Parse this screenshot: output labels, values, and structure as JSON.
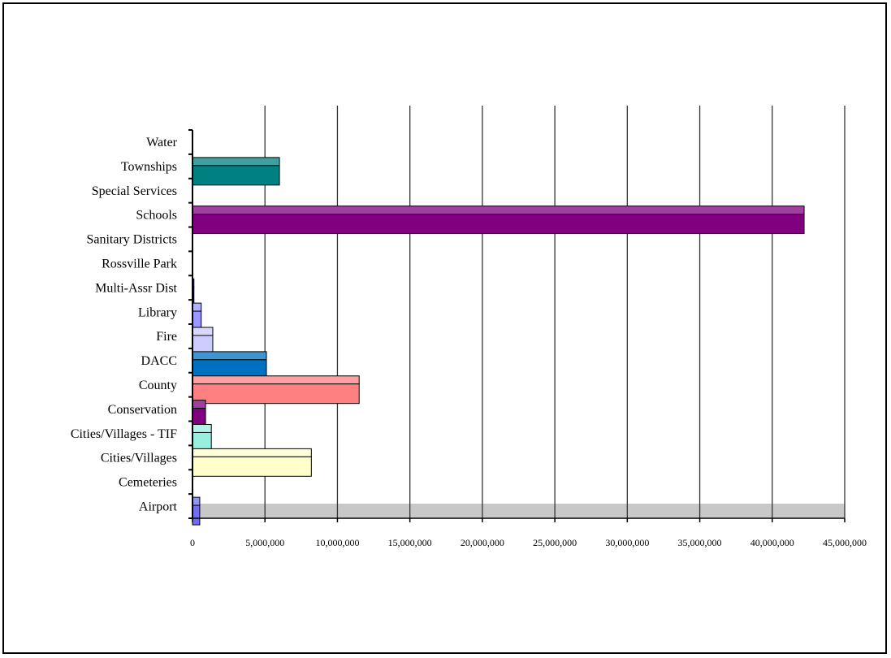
{
  "chart_data": {
    "type": "bar",
    "orientation": "horizontal",
    "style": "3d",
    "categories": [
      "Water",
      "Townships",
      "Special Services",
      "Schools",
      "Sanitary Districts",
      "Rossville Park",
      "Multi-Assr Dist",
      "Library",
      "Fire",
      "DACC",
      "County",
      "Conservation",
      "Cities/Villages  - TIF",
      "Cities/Villages",
      "Cemeteries",
      "Airport"
    ],
    "values": [
      0,
      6000000,
      0,
      42200000,
      0,
      0,
      100000,
      600000,
      1400000,
      5100000,
      11500000,
      900000,
      1300000,
      8200000,
      0,
      500000
    ],
    "colors": [
      "#008080",
      "#008080",
      "#800080",
      "#800080",
      "#cccccc",
      "#800080",
      "#000080",
      "#9999ff",
      "#ccccff",
      "#0070c0",
      "#ff8080",
      "#800080",
      "#99eedd",
      "#ffffcc",
      "#000080",
      "#7070ee"
    ],
    "xlim": [
      0,
      45000000
    ],
    "xticks": [
      "0",
      "5,000,000",
      "10,000,000",
      "15,000,000",
      "20,000,000",
      "25,000,000",
      "30,000,000",
      "35,000,000",
      "40,000,000",
      "45,000,000"
    ],
    "grid": true,
    "title": "",
    "xlabel": "",
    "ylabel": ""
  }
}
